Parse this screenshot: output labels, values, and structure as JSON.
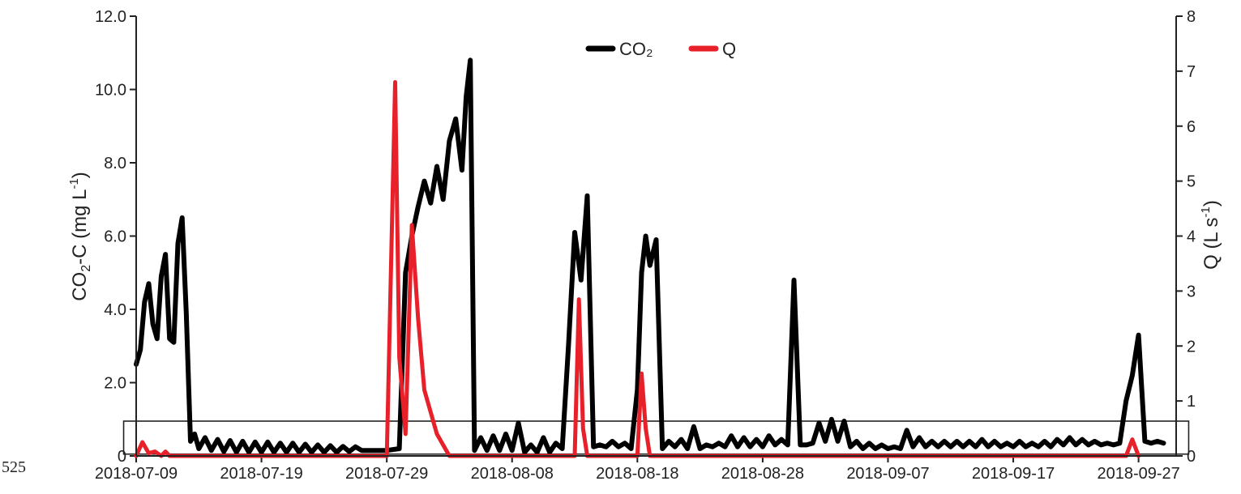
{
  "page_number": "525",
  "chart_data": {
    "type": "line",
    "title": "",
    "xlabel": "",
    "x_range": [
      "2018-07-09",
      "2018-09-30"
    ],
    "x_ticks": [
      "2018-07-09",
      "2018-07-19",
      "2018-07-29",
      "2018-08-08",
      "2018-08-18",
      "2018-08-28",
      "2018-09-07",
      "2018-09-17",
      "2018-09-27"
    ],
    "y_left": {
      "label_parts": [
        "CO",
        "2",
        "-C (mg L",
        "-1",
        ")"
      ],
      "ylim": [
        0,
        12
      ],
      "ticks": [
        "0",
        "2.0",
        "4.0",
        "6.0",
        "8.0",
        "10.0",
        "12.0"
      ]
    },
    "y_right": {
      "label_parts": [
        "Q (L s",
        "-1",
        ")"
      ],
      "ylim": [
        0,
        8
      ],
      "ticks": [
        "0",
        "1",
        "2",
        "3",
        "4",
        "5",
        "6",
        "7",
        "8"
      ]
    },
    "legend": {
      "placement": "top-center",
      "items": [
        {
          "name": "CO₂",
          "color": "#000000"
        },
        {
          "name": "Q",
          "color": "#e8202a"
        }
      ]
    },
    "highlight_box": {
      "x_start": "2018-07-08",
      "x_end": "2018-10-01",
      "y_bottom": 0.05,
      "y_top": 0.95,
      "axis": "left"
    },
    "series": [
      {
        "name": "CO₂",
        "axis": "left",
        "color": "#000000",
        "points": [
          [
            "2018-07-09",
            2.5
          ],
          [
            "2018-07-09T08",
            2.9
          ],
          [
            "2018-07-09T16",
            4.2
          ],
          [
            "2018-07-10",
            4.7
          ],
          [
            "2018-07-10T08",
            3.6
          ],
          [
            "2018-07-10T16",
            3.2
          ],
          [
            "2018-07-11",
            4.9
          ],
          [
            "2018-07-11T08",
            5.5
          ],
          [
            "2018-07-11T16",
            3.2
          ],
          [
            "2018-07-12",
            3.1
          ],
          [
            "2018-07-12T08",
            5.8
          ],
          [
            "2018-07-12T16",
            6.5
          ],
          [
            "2018-07-13",
            3.9
          ],
          [
            "2018-07-13T08",
            0.4
          ],
          [
            "2018-07-13T16",
            0.6
          ],
          [
            "2018-07-14",
            0.2
          ],
          [
            "2018-07-14T12",
            0.5
          ],
          [
            "2018-07-15",
            0.15
          ],
          [
            "2018-07-15T12",
            0.45
          ],
          [
            "2018-07-16",
            0.12
          ],
          [
            "2018-07-16T12",
            0.42
          ],
          [
            "2018-07-17",
            0.1
          ],
          [
            "2018-07-17T12",
            0.4
          ],
          [
            "2018-07-18",
            0.1
          ],
          [
            "2018-07-18T12",
            0.38
          ],
          [
            "2018-07-19",
            0.1
          ],
          [
            "2018-07-19T12",
            0.38
          ],
          [
            "2018-07-20",
            0.1
          ],
          [
            "2018-07-20T12",
            0.35
          ],
          [
            "2018-07-21",
            0.1
          ],
          [
            "2018-07-21T12",
            0.35
          ],
          [
            "2018-07-22",
            0.1
          ],
          [
            "2018-07-22T12",
            0.32
          ],
          [
            "2018-07-23",
            0.1
          ],
          [
            "2018-07-23T12",
            0.3
          ],
          [
            "2018-07-24",
            0.1
          ],
          [
            "2018-07-24T12",
            0.28
          ],
          [
            "2018-07-25",
            0.1
          ],
          [
            "2018-07-25T12",
            0.26
          ],
          [
            "2018-07-26",
            0.12
          ],
          [
            "2018-07-26T12",
            0.25
          ],
          [
            "2018-07-27",
            0.15
          ],
          [
            "2018-07-28",
            0.15
          ],
          [
            "2018-07-29",
            0.15
          ],
          [
            "2018-07-30",
            0.2
          ],
          [
            "2018-07-30T12",
            5.0
          ],
          [
            "2018-07-31",
            6.0
          ],
          [
            "2018-07-31T12",
            6.8
          ],
          [
            "2018-08-01",
            7.5
          ],
          [
            "2018-08-01T12",
            6.9
          ],
          [
            "2018-08-02",
            7.9
          ],
          [
            "2018-08-02T12",
            7.0
          ],
          [
            "2018-08-03",
            8.6
          ],
          [
            "2018-08-03T12",
            9.2
          ],
          [
            "2018-08-04",
            7.8
          ],
          [
            "2018-08-04T08",
            9.8
          ],
          [
            "2018-08-04T16",
            10.8
          ],
          [
            "2018-08-05",
            0.15
          ],
          [
            "2018-08-05T12",
            0.5
          ],
          [
            "2018-08-06",
            0.15
          ],
          [
            "2018-08-06T12",
            0.55
          ],
          [
            "2018-08-07",
            0.15
          ],
          [
            "2018-08-07T12",
            0.6
          ],
          [
            "2018-08-08",
            0.15
          ],
          [
            "2018-08-08T12",
            0.9
          ],
          [
            "2018-08-09",
            0.1
          ],
          [
            "2018-08-09T12",
            0.3
          ],
          [
            "2018-08-10",
            0.1
          ],
          [
            "2018-08-10T12",
            0.5
          ],
          [
            "2018-08-11",
            0.1
          ],
          [
            "2018-08-11T12",
            0.35
          ],
          [
            "2018-08-12",
            0.2
          ],
          [
            "2018-08-12T12",
            3.0
          ],
          [
            "2018-08-13",
            6.1
          ],
          [
            "2018-08-13T12",
            4.8
          ],
          [
            "2018-08-14",
            7.1
          ],
          [
            "2018-08-14T12",
            0.25
          ],
          [
            "2018-08-15",
            0.3
          ],
          [
            "2018-08-15T12",
            0.25
          ],
          [
            "2018-08-16",
            0.4
          ],
          [
            "2018-08-16T12",
            0.25
          ],
          [
            "2018-08-17",
            0.35
          ],
          [
            "2018-08-17T12",
            0.2
          ],
          [
            "2018-08-18",
            1.8
          ],
          [
            "2018-08-18T08",
            5.0
          ],
          [
            "2018-08-18T16",
            6.0
          ],
          [
            "2018-08-19",
            5.2
          ],
          [
            "2018-08-19T12",
            5.9
          ],
          [
            "2018-08-20",
            0.2
          ],
          [
            "2018-08-20T12",
            0.4
          ],
          [
            "2018-08-21",
            0.25
          ],
          [
            "2018-08-21T12",
            0.45
          ],
          [
            "2018-08-22",
            0.2
          ],
          [
            "2018-08-22T12",
            0.8
          ],
          [
            "2018-08-23",
            0.2
          ],
          [
            "2018-08-23T12",
            0.3
          ],
          [
            "2018-08-24",
            0.25
          ],
          [
            "2018-08-24T12",
            0.35
          ],
          [
            "2018-08-25",
            0.25
          ],
          [
            "2018-08-25T12",
            0.55
          ],
          [
            "2018-08-26",
            0.25
          ],
          [
            "2018-08-26T12",
            0.5
          ],
          [
            "2018-08-27",
            0.25
          ],
          [
            "2018-08-27T12",
            0.45
          ],
          [
            "2018-08-28",
            0.25
          ],
          [
            "2018-08-28T12",
            0.55
          ],
          [
            "2018-08-29",
            0.3
          ],
          [
            "2018-08-29T12",
            0.45
          ],
          [
            "2018-08-30",
            0.3
          ],
          [
            "2018-08-30T12",
            4.8
          ],
          [
            "2018-08-31",
            0.3
          ],
          [
            "2018-08-31T12",
            0.3
          ],
          [
            "2018-09-01",
            0.35
          ],
          [
            "2018-09-01T12",
            0.9
          ],
          [
            "2018-09-02",
            0.4
          ],
          [
            "2018-09-02T12",
            1.0
          ],
          [
            "2018-09-03",
            0.4
          ],
          [
            "2018-09-03T12",
            0.95
          ],
          [
            "2018-09-04",
            0.25
          ],
          [
            "2018-09-04T12",
            0.4
          ],
          [
            "2018-09-05",
            0.2
          ],
          [
            "2018-09-05T12",
            0.35
          ],
          [
            "2018-09-06",
            0.2
          ],
          [
            "2018-09-06T12",
            0.3
          ],
          [
            "2018-09-07",
            0.2
          ],
          [
            "2018-09-07T12",
            0.25
          ],
          [
            "2018-09-08",
            0.2
          ],
          [
            "2018-09-08T12",
            0.7
          ],
          [
            "2018-09-09",
            0.25
          ],
          [
            "2018-09-09T12",
            0.5
          ],
          [
            "2018-09-10",
            0.25
          ],
          [
            "2018-09-10T12",
            0.4
          ],
          [
            "2018-09-11",
            0.25
          ],
          [
            "2018-09-11T12",
            0.4
          ],
          [
            "2018-09-12",
            0.25
          ],
          [
            "2018-09-12T12",
            0.4
          ],
          [
            "2018-09-13",
            0.25
          ],
          [
            "2018-09-13T12",
            0.4
          ],
          [
            "2018-09-14",
            0.25
          ],
          [
            "2018-09-14T12",
            0.45
          ],
          [
            "2018-09-15",
            0.25
          ],
          [
            "2018-09-15T12",
            0.4
          ],
          [
            "2018-09-16",
            0.25
          ],
          [
            "2018-09-16T12",
            0.35
          ],
          [
            "2018-09-17",
            0.25
          ],
          [
            "2018-09-17T12",
            0.4
          ],
          [
            "2018-09-18",
            0.25
          ],
          [
            "2018-09-18T12",
            0.35
          ],
          [
            "2018-09-19",
            0.25
          ],
          [
            "2018-09-19T12",
            0.4
          ],
          [
            "2018-09-20",
            0.25
          ],
          [
            "2018-09-20T12",
            0.45
          ],
          [
            "2018-09-21",
            0.3
          ],
          [
            "2018-09-21T12",
            0.5
          ],
          [
            "2018-09-22",
            0.3
          ],
          [
            "2018-09-22T12",
            0.45
          ],
          [
            "2018-09-23",
            0.3
          ],
          [
            "2018-09-23T12",
            0.4
          ],
          [
            "2018-09-24",
            0.3
          ],
          [
            "2018-09-24T12",
            0.35
          ],
          [
            "2018-09-25",
            0.3
          ],
          [
            "2018-09-25T12",
            0.35
          ],
          [
            "2018-09-26",
            1.5
          ],
          [
            "2018-09-26T12",
            2.2
          ],
          [
            "2018-09-27",
            3.3
          ],
          [
            "2018-09-27T12",
            0.4
          ],
          [
            "2018-09-28",
            0.35
          ],
          [
            "2018-09-28T12",
            0.4
          ],
          [
            "2018-09-29",
            0.35
          ]
        ]
      },
      {
        "name": "Q",
        "axis": "right",
        "color": "#e8202a",
        "points": [
          [
            "2018-07-09",
            0.0
          ],
          [
            "2018-07-09T12",
            0.25
          ],
          [
            "2018-07-10",
            0.05
          ],
          [
            "2018-07-10T12",
            0.08
          ],
          [
            "2018-07-11",
            0.0
          ],
          [
            "2018-07-11T08",
            0.08
          ],
          [
            "2018-07-11T16",
            0.0
          ],
          [
            "2018-07-29",
            0.0
          ],
          [
            "2018-07-29T16",
            6.8
          ],
          [
            "2018-07-30",
            1.8
          ],
          [
            "2018-07-30T12",
            0.4
          ],
          [
            "2018-07-31",
            4.2
          ],
          [
            "2018-07-31T12",
            2.5
          ],
          [
            "2018-08-01",
            1.2
          ],
          [
            "2018-08-02",
            0.4
          ],
          [
            "2018-08-03",
            0.0
          ],
          [
            "2018-08-13",
            0.0
          ],
          [
            "2018-08-13T08",
            2.85
          ],
          [
            "2018-08-13T16",
            0.5
          ],
          [
            "2018-08-14",
            0.0
          ],
          [
            "2018-08-18",
            0.0
          ],
          [
            "2018-08-18T08",
            1.5
          ],
          [
            "2018-08-18T16",
            0.5
          ],
          [
            "2018-08-19",
            0.0
          ],
          [
            "2018-09-26",
            0.0
          ],
          [
            "2018-09-26T12",
            0.3
          ],
          [
            "2018-09-27",
            0.0
          ]
        ]
      }
    ]
  }
}
